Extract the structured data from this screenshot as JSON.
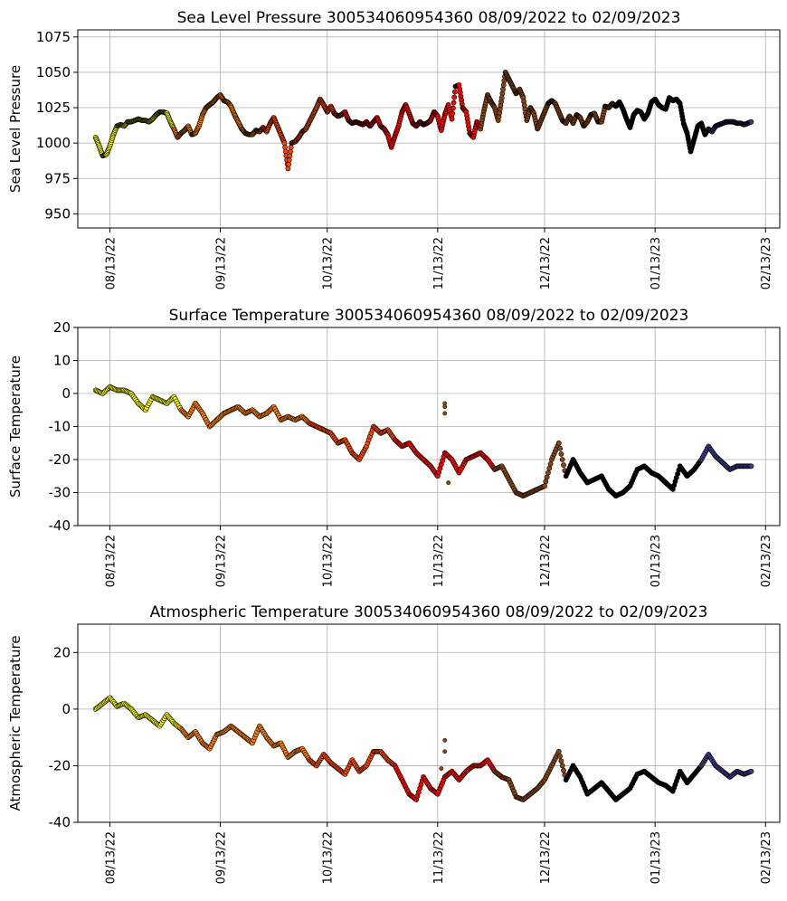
{
  "colors": {
    "yellow": "#ffff00",
    "orange": "#ff8000",
    "redorange": "#ff4500",
    "red": "#ff0000",
    "brown": "#8b4513",
    "black": "#000000",
    "navy": "#3d3c8c",
    "edge": "#000000",
    "grid": "#b0b0b0"
  },
  "chart_data": [
    {
      "type": "scatter",
      "title": "Sea Level Pressure 300534060954360  08/09/2022 to 02/09/2023",
      "xlabel": "",
      "ylabel": "Sea Level Pressure",
      "xlim": [
        -5,
        192
      ],
      "ylim": [
        940,
        1080
      ],
      "yticks": [
        950,
        975,
        1000,
        1025,
        1050,
        1075
      ],
      "xticks": [
        4,
        35,
        65,
        96,
        126,
        157,
        188
      ],
      "xticklabels": [
        "08/13/22",
        "09/13/22",
        "10/13/22",
        "11/13/22",
        "12/13/22",
        "01/13/23",
        "02/13/23"
      ],
      "grid": true,
      "series_x": [
        0,
        1,
        2,
        3,
        4,
        5,
        6,
        7,
        8,
        9,
        10,
        11,
        12,
        13,
        14,
        15,
        16,
        17,
        18,
        19,
        20,
        21,
        22,
        23,
        24,
        25,
        26,
        27,
        28,
        29,
        30,
        31,
        32,
        33,
        34,
        35,
        36,
        37,
        38,
        39,
        40,
        41,
        42,
        43,
        44,
        45,
        46,
        47,
        48,
        49,
        50,
        51,
        52,
        53,
        54,
        55,
        56,
        57,
        58,
        59,
        60,
        61,
        62,
        63,
        64,
        65,
        66,
        67,
        68,
        69,
        70,
        71,
        72,
        73,
        74,
        75,
        76,
        77,
        78,
        79,
        80,
        81,
        82,
        83,
        84,
        85,
        86,
        87,
        88,
        89,
        90,
        91,
        92,
        93,
        94,
        95,
        96,
        97,
        98,
        99,
        100,
        101,
        102,
        103,
        104,
        105,
        106,
        107,
        108,
        109,
        110,
        111,
        112,
        113,
        114,
        115,
        116,
        117,
        118,
        119,
        120,
        121,
        122,
        123,
        124,
        125,
        126,
        127,
        128,
        129,
        130,
        131,
        132,
        133,
        134,
        135,
        136,
        137,
        138,
        139,
        140,
        141,
        142,
        143,
        144,
        145,
        146,
        147,
        148,
        149,
        150,
        151,
        152,
        153,
        154,
        155,
        156,
        157,
        158,
        159,
        160,
        161,
        162,
        163,
        164,
        165,
        166,
        167,
        168,
        169,
        170,
        171,
        172,
        173,
        174,
        175,
        176,
        177,
        178,
        179,
        180,
        181,
        182,
        183,
        184
      ],
      "series_y": [
        1004,
        998,
        991,
        992,
        998,
        1006,
        1012,
        1013,
        1012,
        1015,
        1015,
        1016,
        1017,
        1016,
        1016,
        1015,
        1017,
        1020,
        1022,
        1022,
        1021,
        1015,
        1010,
        1004,
        1007,
        1009,
        1012,
        1006,
        1007,
        1012,
        1020,
        1025,
        1027,
        1029,
        1032,
        1034,
        1030,
        1029,
        1026,
        1020,
        1015,
        1010,
        1007,
        1006,
        1006,
        1009,
        1008,
        1011,
        1008,
        1014,
        1018,
        1012,
        1006,
        1000,
        982,
        1000,
        1001,
        1004,
        1008,
        1010,
        1015,
        1020,
        1025,
        1031,
        1027,
        1022,
        1026,
        1021,
        1019,
        1020,
        1022,
        1016,
        1014,
        1015,
        1014,
        1013,
        1015,
        1012,
        1015,
        1018,
        1012,
        1010,
        1006,
        997,
        1005,
        1012,
        1022,
        1027,
        1021,
        1014,
        1012,
        1015,
        1013,
        1014,
        1016,
        1022,
        1019,
        1009,
        1020,
        1027,
        1017,
        1040,
        1041,
        1025,
        1022,
        1007,
        1004,
        1015,
        1010,
        1023,
        1034,
        1029,
        1025,
        1016,
        1032,
        1050,
        1045,
        1040,
        1035,
        1038,
        1032,
        1016,
        1025,
        1021,
        1010,
        1016,
        1022,
        1028,
        1030,
        1028,
        1022,
        1016,
        1014,
        1019,
        1014,
        1020,
        1018,
        1012,
        1015,
        1020,
        1021,
        1015,
        1015,
        1026,
        1025,
        1028,
        1026,
        1029,
        1024,
        1017,
        1011,
        1020,
        1023,
        1022,
        1017,
        1021,
        1029,
        1031,
        1027,
        1025,
        1024,
        1032,
        1030,
        1031,
        1028,
        1014,
        1007,
        994,
        1003,
        1012,
        1014,
        1006,
        1010,
        1008,
        1012,
        1013,
        1014,
        1015,
        1015,
        1015,
        1014,
        1014,
        1013,
        1014,
        1015
      ],
      "color_ranges": [
        {
          "name": "yellow",
          "from": 0,
          "to": 22
        },
        {
          "name": "orange",
          "from": 22,
          "to": 46
        },
        {
          "name": "redorange",
          "from": 46,
          "to": 70
        },
        {
          "name": "red",
          "from": 70,
          "to": 108
        },
        {
          "name": "brown",
          "from": 108,
          "to": 146
        },
        {
          "name": "black",
          "from": 146,
          "to": 172
        },
        {
          "name": "navy",
          "from": 172,
          "to": 185
        }
      ]
    },
    {
      "type": "scatter",
      "title": "Surface Temperature 300534060954360  08/09/2022 to 02/09/2023",
      "xlabel": "",
      "ylabel": "Surface Temperature",
      "xlim": [
        -5,
        192
      ],
      "ylim": [
        -40,
        20
      ],
      "yticks": [
        -40,
        -30,
        -20,
        -10,
        0,
        10,
        20
      ],
      "xticks": [
        4,
        35,
        65,
        96,
        126,
        157,
        188
      ],
      "xticklabels": [
        "08/13/22",
        "09/13/22",
        "10/13/22",
        "11/13/22",
        "12/13/22",
        "01/13/23",
        "02/13/23"
      ],
      "grid": true,
      "series_x": [
        0,
        2,
        4,
        6,
        8,
        10,
        12,
        14,
        16,
        18,
        20,
        22,
        24,
        26,
        28,
        30,
        32,
        34,
        36,
        38,
        40,
        42,
        44,
        46,
        48,
        50,
        52,
        54,
        56,
        58,
        60,
        62,
        64,
        66,
        68,
        70,
        72,
        74,
        76,
        78,
        80,
        82,
        84,
        86,
        88,
        90,
        92,
        94,
        96,
        98,
        100,
        102,
        104,
        106,
        108,
        110,
        112,
        114,
        116,
        118,
        120,
        122,
        124,
        126,
        128,
        130,
        132,
        134,
        136,
        138,
        140,
        142,
        144,
        146,
        148,
        150,
        152,
        154,
        156,
        158,
        160,
        162,
        164,
        166,
        168,
        170,
        172,
        174,
        176,
        178,
        180,
        182,
        184
      ],
      "series_y": [
        1,
        0,
        2,
        1,
        1,
        0,
        -3,
        -5,
        -1,
        -2,
        -3,
        -1,
        -5,
        -7,
        -3,
        -6,
        -10,
        -8,
        -6,
        -5,
        -4,
        -6,
        -5,
        -7,
        -6,
        -4,
        -8,
        -7,
        -8,
        -7,
        -9,
        -10,
        -11,
        -12,
        -15,
        -14,
        -18,
        -20,
        -16,
        -10,
        -12,
        -11,
        -14,
        -16,
        -15,
        -18,
        -20,
        -22,
        -25,
        -18,
        -20,
        -24,
        -20,
        -19,
        -18,
        -20,
        -23,
        -22,
        -26,
        -30,
        -31,
        -30,
        -29,
        -28,
        -20,
        -15,
        -25,
        -20,
        -24,
        -27,
        -26,
        -25,
        -29,
        -31,
        -30,
        -28,
        -23,
        -22,
        -24,
        -25,
        -27,
        -29,
        -22,
        -25,
        -23,
        -20,
        -16,
        -19,
        -21,
        -23,
        -22,
        -22,
        -22
      ],
      "color_ranges": [
        {
          "name": "yellow",
          "from": 0,
          "to": 12
        },
        {
          "name": "orange",
          "from": 12,
          "to": 30
        },
        {
          "name": "redorange",
          "from": 30,
          "to": 42
        },
        {
          "name": "red",
          "from": 42,
          "to": 56
        },
        {
          "name": "brown",
          "from": 56,
          "to": 66
        },
        {
          "name": "black",
          "from": 66,
          "to": 85
        },
        {
          "name": "navy",
          "from": 85,
          "to": 93
        }
      ],
      "outliers": [
        {
          "x": 98,
          "y": -3
        },
        {
          "x": 98,
          "y": -4
        },
        {
          "x": 98,
          "y": -6
        },
        {
          "x": 99,
          "y": -27
        }
      ]
    },
    {
      "type": "scatter",
      "title": "Atmospheric Temperature 300534060954360  08/09/2022 to 02/09/2023",
      "xlabel": "",
      "ylabel": "Atmospheric Temperature",
      "xlim": [
        -5,
        192
      ],
      "ylim": [
        -40,
        30
      ],
      "yticks": [
        -40,
        -20,
        0,
        20
      ],
      "xticks": [
        4,
        35,
        65,
        96,
        126,
        157,
        188
      ],
      "xticklabels": [
        "08/13/22",
        "09/13/22",
        "10/13/22",
        "11/13/22",
        "12/13/22",
        "01/13/23",
        "02/13/23"
      ],
      "grid": true,
      "series_x": [
        0,
        2,
        4,
        6,
        8,
        10,
        12,
        14,
        16,
        18,
        20,
        22,
        24,
        26,
        28,
        30,
        32,
        34,
        36,
        38,
        40,
        42,
        44,
        46,
        48,
        50,
        52,
        54,
        56,
        58,
        60,
        62,
        64,
        66,
        68,
        70,
        72,
        74,
        76,
        78,
        80,
        82,
        84,
        86,
        88,
        90,
        92,
        94,
        96,
        98,
        100,
        102,
        104,
        106,
        108,
        110,
        112,
        114,
        116,
        118,
        120,
        122,
        124,
        126,
        128,
        130,
        132,
        134,
        136,
        138,
        140,
        142,
        144,
        146,
        148,
        150,
        152,
        154,
        156,
        158,
        160,
        162,
        164,
        166,
        168,
        170,
        172,
        174,
        176,
        178,
        180,
        182,
        184
      ],
      "series_y": [
        0,
        2,
        4,
        1,
        2,
        0,
        -3,
        -2,
        -4,
        -6,
        -2,
        -5,
        -7,
        -10,
        -8,
        -12,
        -14,
        -9,
        -8,
        -6,
        -8,
        -10,
        -12,
        -6,
        -10,
        -13,
        -12,
        -17,
        -15,
        -14,
        -18,
        -20,
        -16,
        -19,
        -21,
        -23,
        -18,
        -22,
        -20,
        -15,
        -15,
        -18,
        -20,
        -25,
        -30,
        -32,
        -24,
        -28,
        -30,
        -24,
        -22,
        -25,
        -22,
        -20,
        -20,
        -18,
        -22,
        -24,
        -25,
        -31,
        -32,
        -30,
        -28,
        -25,
        -20,
        -15,
        -25,
        -20,
        -24,
        -30,
        -28,
        -26,
        -29,
        -32,
        -30,
        -28,
        -23,
        -22,
        -24,
        -26,
        -27,
        -29,
        -22,
        -26,
        -23,
        -20,
        -16,
        -20,
        -22,
        -24,
        -22,
        -23,
        -22
      ],
      "color_ranges": [
        {
          "name": "yellow",
          "from": 0,
          "to": 12
        },
        {
          "name": "orange",
          "from": 12,
          "to": 30
        },
        {
          "name": "redorange",
          "from": 30,
          "to": 42
        },
        {
          "name": "red",
          "from": 42,
          "to": 56
        },
        {
          "name": "brown",
          "from": 56,
          "to": 66
        },
        {
          "name": "black",
          "from": 66,
          "to": 85
        },
        {
          "name": "navy",
          "from": 85,
          "to": 93
        }
      ],
      "outliers": [
        {
          "x": 98,
          "y": -11
        },
        {
          "x": 98,
          "y": -15
        },
        {
          "x": 97,
          "y": -21
        }
      ]
    }
  ]
}
